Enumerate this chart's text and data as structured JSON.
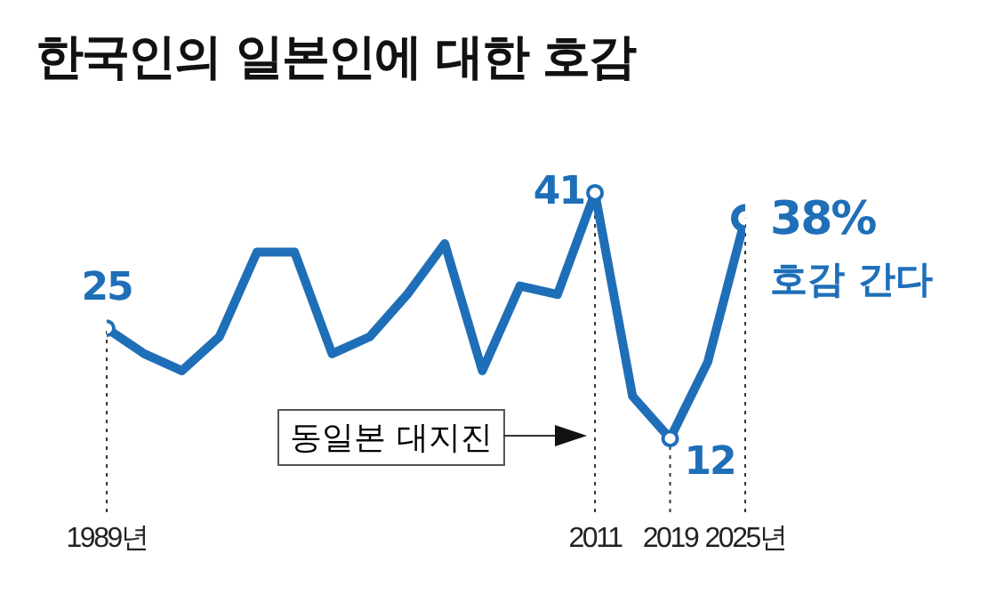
{
  "chart_data": {
    "type": "line",
    "title": "한국인의 일본인에 대한 호감",
    "categories": [
      "1989년",
      null,
      null,
      null,
      null,
      null,
      null,
      null,
      null,
      null,
      null,
      null,
      null,
      "2011",
      null,
      "2019",
      null,
      "2025년"
    ],
    "values": [
      25,
      22,
      20,
      24,
      34,
      34,
      22,
      24,
      29,
      35,
      20,
      30,
      29,
      41,
      17,
      12,
      21,
      38
    ],
    "value_labels": [
      "25",
      null,
      null,
      null,
      null,
      null,
      null,
      null,
      null,
      null,
      null,
      null,
      null,
      "41",
      null,
      "12",
      null,
      "38%"
    ],
    "color": "#1f6fb8",
    "annotations": [
      "동일본 대지진",
      {
        "text": "호감 간다",
        "x": "2025년",
        "y": 38
      }
    ],
    "legend": false,
    "grid": "x"
  }
}
